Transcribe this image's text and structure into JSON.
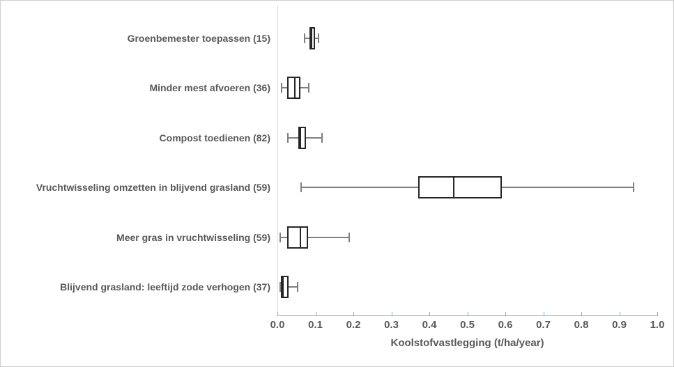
{
  "chart_data": {
    "type": "boxplot",
    "orientation": "horizontal",
    "title": "",
    "xlabel": "Koolstofvastlegging (t/ha/year)",
    "ylabel": "",
    "xlim": [
      0.0,
      1.0
    ],
    "x_tick_labels": [
      "0.0",
      "0.1",
      "0.2",
      "0.3",
      "0.4",
      "0.5",
      "0.6",
      "0.7",
      "0.8",
      "0.9",
      "1.0"
    ],
    "grid": false,
    "legend": null,
    "categories": [
      "Groenbemester toepassen (15)",
      "Minder mest afvoeren (36)",
      "Compost toedienen (82)",
      "Vruchtwisseling omzetten in blijvend grasland (59)",
      "Meer gras in vruchtwisseling (59)",
      "Blijvend grasland: leeftijd zode verhogen (37)"
    ],
    "boxes": [
      {
        "category": "Groenbemester toepassen (15)",
        "min": 0.07,
        "q1": 0.085,
        "median": 0.09,
        "q3": 0.1,
        "max": 0.11
      },
      {
        "category": "Minder mest afvoeren (36)",
        "min": 0.01,
        "q1": 0.025,
        "median": 0.045,
        "q3": 0.06,
        "max": 0.085
      },
      {
        "category": "Compost toedienen (82)",
        "min": 0.025,
        "q1": 0.055,
        "median": 0.06,
        "q3": 0.075,
        "max": 0.12
      },
      {
        "category": "Vruchtwisseling omzetten in blijvend grasland (59)",
        "min": 0.06,
        "q1": 0.37,
        "median": 0.465,
        "q3": 0.59,
        "max": 0.94
      },
      {
        "category": "Meer gras in vruchtwisseling (59)",
        "min": 0.005,
        "q1": 0.025,
        "median": 0.06,
        "q3": 0.08,
        "max": 0.19
      },
      {
        "category": "Blijvend grasland: leeftijd zode verhogen (37)",
        "min": 0.005,
        "q1": 0.01,
        "median": 0.015,
        "q3": 0.03,
        "max": 0.055
      }
    ]
  },
  "colors": {
    "axis_line": "#74a9d8",
    "labels": "#595959",
    "box_border": "#262626",
    "median_line": "#262626",
    "whisker": "#7f7f7f",
    "box_fill": "#ffffff",
    "plot_left_border": "#d9d9d9",
    "chart_border": "#cfcdcd",
    "background": "#ffffff"
  }
}
